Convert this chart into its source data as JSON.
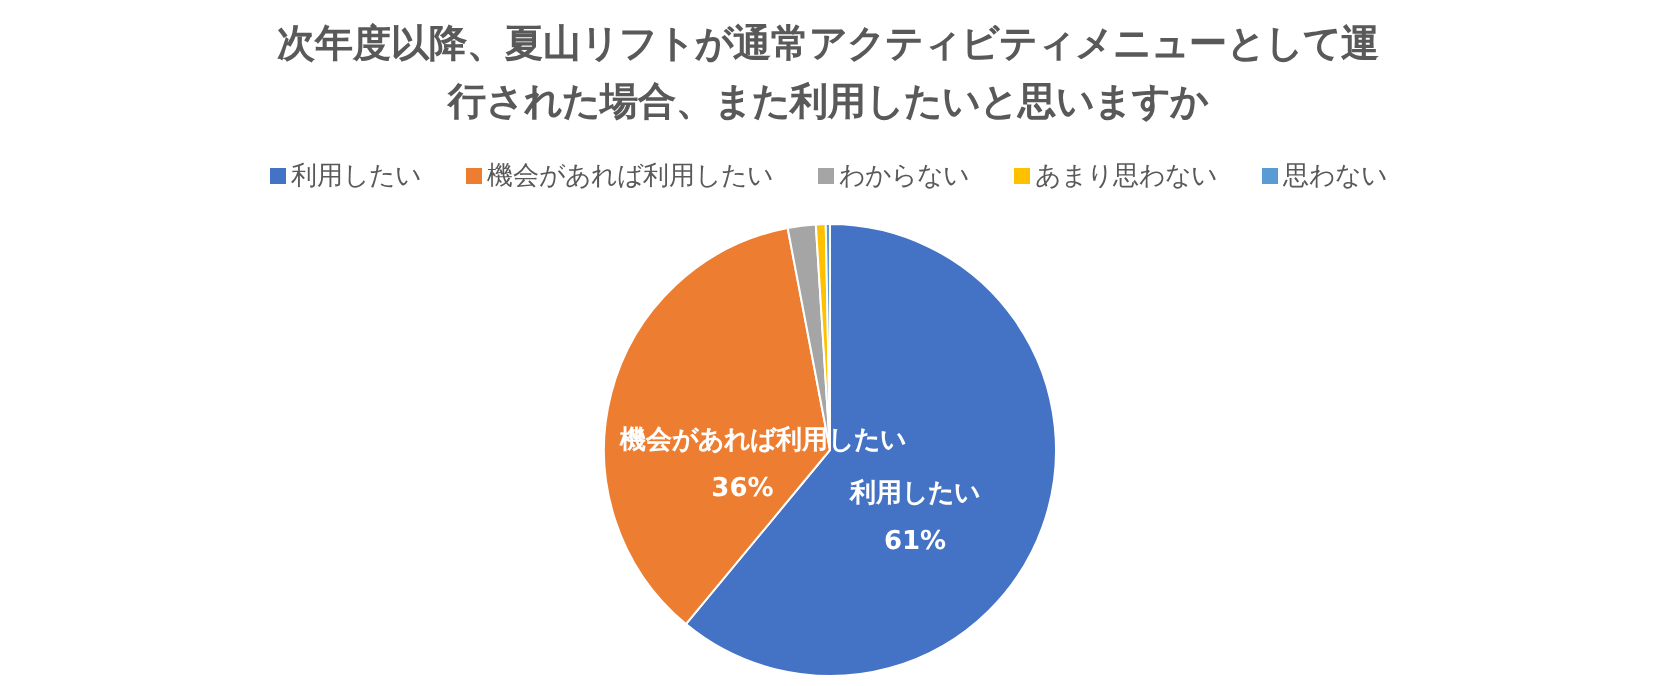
{
  "chart_data": {
    "type": "pie",
    "title": "次年度以降、夏山リフトが通常アクティビティメニューとして運行された場合、また利用したいと思いますか",
    "categories": [
      "利用したい",
      "機会があれば利用したい",
      "わからない",
      "あまり思わない",
      "思わない"
    ],
    "values": [
      61,
      36,
      2,
      0.7,
      0.3
    ],
    "colors": [
      "#4472c4",
      "#ed7d31",
      "#a5a5a5",
      "#ffc000",
      "#5b9bd5"
    ],
    "value_labels": [
      "61%",
      "36%",
      null,
      null,
      null
    ],
    "legend": "top"
  }
}
